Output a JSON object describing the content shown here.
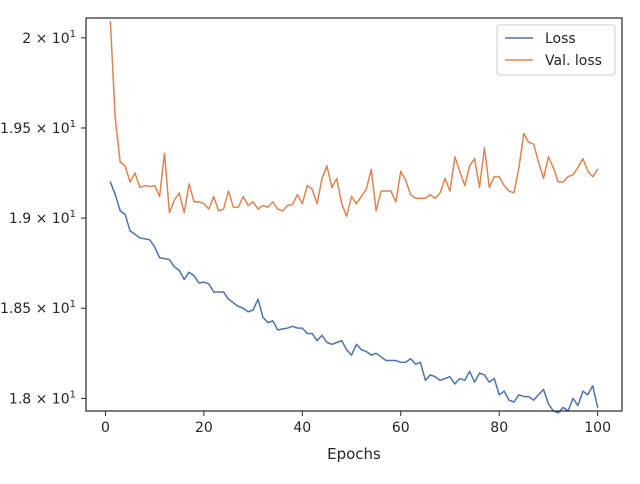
{
  "chart_data": {
    "type": "line",
    "title": "",
    "xlabel": "Epochs",
    "ylabel": "",
    "xlim": [
      -3.95,
      104.95
    ],
    "ylim": [
      17.93,
      20.11
    ],
    "x_ticks": [
      0,
      20,
      40,
      60,
      80,
      100
    ],
    "x_tick_labels": [
      "0",
      "20",
      "40",
      "60",
      "80",
      "100"
    ],
    "y_ticks": [
      18.0,
      18.5,
      19.0,
      19.5,
      20.0
    ],
    "y_tick_labels": [
      {
        "base": "1.8 × 10",
        "exp": "1"
      },
      {
        "base": "1.85 × 10",
        "exp": "1"
      },
      {
        "base": "1.9 × 10",
        "exp": "1"
      },
      {
        "base": "1.95 × 10",
        "exp": "1"
      },
      {
        "base": "2 × 10",
        "exp": "1"
      }
    ],
    "grid": false,
    "legend_position": "top-right",
    "series": [
      {
        "name": "Loss",
        "color": "#4c72b0",
        "x": [
          1,
          2,
          3,
          4,
          5,
          6,
          7,
          8,
          9,
          10,
          11,
          12,
          13,
          14,
          15,
          16,
          17,
          18,
          19,
          20,
          21,
          22,
          23,
          24,
          25,
          26,
          27,
          28,
          29,
          30,
          31,
          32,
          33,
          34,
          35,
          36,
          37,
          38,
          39,
          40,
          41,
          42,
          43,
          44,
          45,
          46,
          47,
          48,
          49,
          50,
          51,
          52,
          53,
          54,
          55,
          56,
          57,
          58,
          59,
          60,
          61,
          62,
          63,
          64,
          65,
          66,
          67,
          68,
          69,
          70,
          71,
          72,
          73,
          74,
          75,
          76,
          77,
          78,
          79,
          80,
          81,
          82,
          83,
          84,
          85,
          86,
          87,
          88,
          89,
          90,
          91,
          92,
          93,
          94,
          95,
          96,
          97,
          98,
          99,
          100
        ],
        "values": [
          19.2,
          19.13,
          19.04,
          19.02,
          18.93,
          18.91,
          18.89,
          18.885,
          18.88,
          18.84,
          18.78,
          18.775,
          18.77,
          18.73,
          18.71,
          18.66,
          18.7,
          18.68,
          18.64,
          18.645,
          18.635,
          18.59,
          18.59,
          18.59,
          18.55,
          18.53,
          18.51,
          18.5,
          18.48,
          18.49,
          18.55,
          18.45,
          18.42,
          18.43,
          18.38,
          18.385,
          18.39,
          18.4,
          18.39,
          18.39,
          18.36,
          18.36,
          18.32,
          18.35,
          18.31,
          18.3,
          18.31,
          18.32,
          18.27,
          18.24,
          18.3,
          18.27,
          18.26,
          18.24,
          18.25,
          18.23,
          18.21,
          18.21,
          18.21,
          18.2,
          18.2,
          18.22,
          18.19,
          18.2,
          18.1,
          18.13,
          18.12,
          18.1,
          18.11,
          18.12,
          18.08,
          18.11,
          18.1,
          18.15,
          18.09,
          18.14,
          18.13,
          18.09,
          18.11,
          18.02,
          18.04,
          17.99,
          17.98,
          18.02,
          18.01,
          18.01,
          17.99,
          18.02,
          18.05,
          17.97,
          17.93,
          17.92,
          17.95,
          17.93,
          18.0,
          17.96,
          18.04,
          18.02,
          18.07,
          17.95
        ]
      },
      {
        "name": "Val. loss",
        "color": "#dd8452",
        "x": [
          1,
          2,
          3,
          4,
          5,
          6,
          7,
          8,
          9,
          10,
          11,
          12,
          13,
          14,
          15,
          16,
          17,
          18,
          19,
          20,
          21,
          22,
          23,
          24,
          25,
          26,
          27,
          28,
          29,
          30,
          31,
          32,
          33,
          34,
          35,
          36,
          37,
          38,
          39,
          40,
          41,
          42,
          43,
          44,
          45,
          46,
          47,
          48,
          49,
          50,
          51,
          52,
          53,
          54,
          55,
          56,
          57,
          58,
          59,
          60,
          61,
          62,
          63,
          64,
          65,
          66,
          67,
          68,
          69,
          70,
          71,
          72,
          73,
          74,
          75,
          76,
          77,
          78,
          79,
          80,
          81,
          82,
          83,
          84,
          85,
          86,
          87,
          88,
          89,
          90,
          91,
          92,
          93,
          94,
          95,
          96,
          97,
          98,
          99,
          100
        ],
        "values": [
          20.09,
          19.55,
          19.31,
          19.29,
          19.2,
          19.25,
          19.17,
          19.18,
          19.175,
          19.18,
          19.12,
          19.36,
          19.03,
          19.1,
          19.14,
          19.03,
          19.19,
          19.09,
          19.09,
          19.08,
          19.05,
          19.12,
          19.04,
          19.05,
          19.15,
          19.06,
          19.06,
          19.12,
          19.07,
          19.09,
          19.05,
          19.07,
          19.06,
          19.09,
          19.05,
          19.04,
          19.07,
          19.075,
          19.13,
          19.08,
          19.18,
          19.16,
          19.08,
          19.22,
          19.29,
          19.17,
          19.22,
          19.08,
          19.01,
          19.12,
          19.08,
          19.12,
          19.16,
          19.27,
          19.04,
          19.15,
          19.15,
          19.15,
          19.09,
          19.26,
          19.21,
          19.13,
          19.11,
          19.11,
          19.11,
          19.13,
          19.11,
          19.14,
          19.22,
          19.15,
          19.34,
          19.26,
          19.18,
          19.29,
          19.33,
          19.17,
          19.39,
          19.17,
          19.23,
          19.23,
          19.18,
          19.15,
          19.14,
          19.28,
          19.47,
          19.42,
          19.41,
          19.31,
          19.22,
          19.34,
          19.28,
          19.2,
          19.2,
          19.23,
          19.24,
          19.28,
          19.33,
          19.26,
          19.23,
          19.27
        ]
      }
    ]
  }
}
